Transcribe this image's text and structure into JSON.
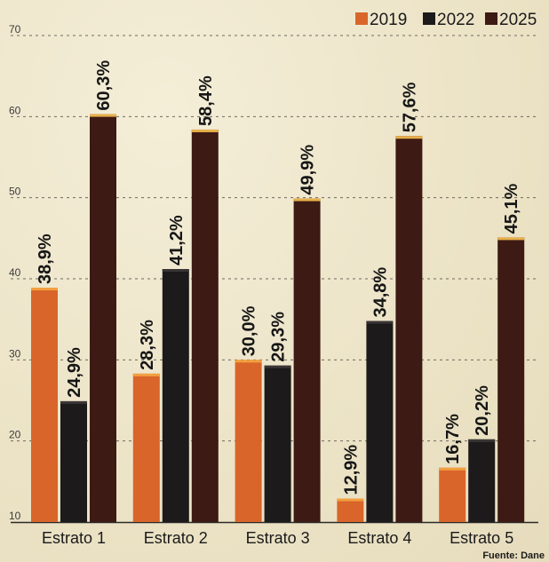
{
  "chart_data": {
    "type": "bar",
    "categories": [
      "Estrato 1",
      "Estrato 2",
      "Estrato 3",
      "Estrato 4",
      "Estrato 5"
    ],
    "series": [
      {
        "name": "2019",
        "color": "#d9652a",
        "values": [
          38.9,
          28.3,
          30.0,
          12.9,
          16.7
        ],
        "labels": [
          "38,9%",
          "28,3%",
          "30,0%",
          "12,9%",
          "16,7%"
        ]
      },
      {
        "name": "2022",
        "color": "#1c1a1a",
        "values": [
          24.9,
          41.2,
          29.3,
          34.8,
          20.2
        ],
        "labels": [
          "24,9%",
          "41,2%",
          "29,3%",
          "34,8%",
          "20,2%"
        ]
      },
      {
        "name": "2025",
        "color": "#3d1a14",
        "values": [
          60.3,
          58.4,
          49.9,
          57.6,
          45.1
        ],
        "labels": [
          "60,3%",
          "58,4%",
          "49,9%",
          "57,6%",
          "45,1%"
        ]
      }
    ],
    "yticks": [
      "10",
      "20",
      "30",
      "40",
      "50",
      "60",
      "70"
    ],
    "ylim": [
      10,
      70
    ],
    "grid": true,
    "legend_position": "top-right",
    "title": "",
    "xlabel": "",
    "ylabel": ""
  },
  "source": "Fuente: Dane"
}
